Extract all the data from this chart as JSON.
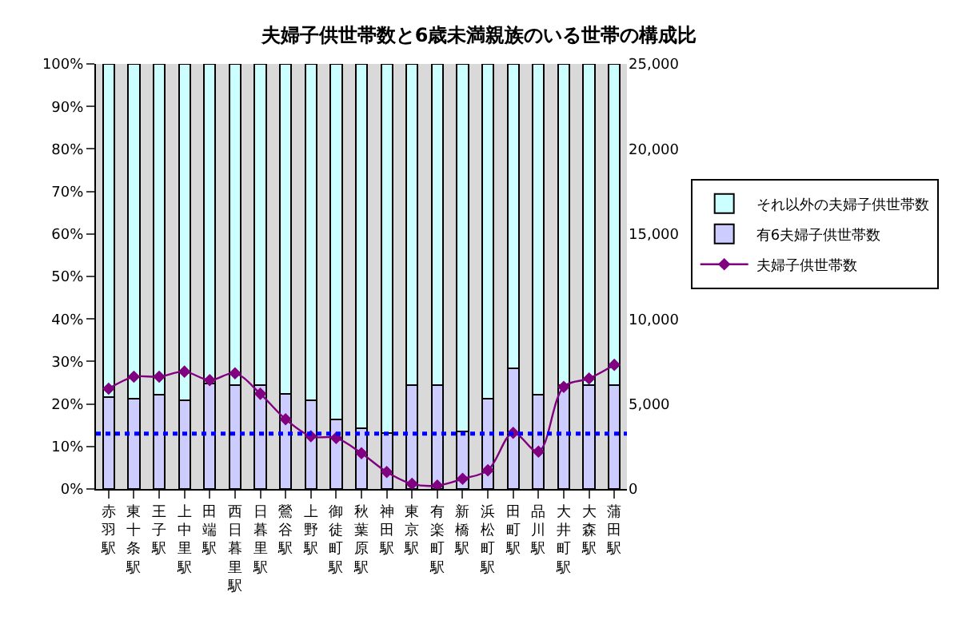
{
  "chart_data": {
    "type": "bar",
    "stacked": true,
    "title": "夫婦子供世帯数と6歳未満親族のいる世帯の構成比",
    "categories": [
      "赤羽駅",
      "東十条駅",
      "王子駅",
      "上中里駅",
      "田端駅",
      "西日暮里駅",
      "日暮里駅",
      "鶯谷駅",
      "上野駅",
      "御徒町駅",
      "秋葉原駅",
      "神田駅",
      "東京駅",
      "有楽町駅",
      "新橋駅",
      "浜松町駅",
      "田町駅",
      "品川駅",
      "大井町駅",
      "大森駅",
      "蒲田駅"
    ],
    "series": [
      {
        "name": "有6夫婦子供世帯数",
        "color": "#ccccff",
        "values": [
          21.6,
          21.2,
          22.1,
          20.8,
          24.8,
          24.4,
          24.4,
          22.4,
          20.8,
          16.4,
          14.2,
          13.2,
          24.4,
          24.4,
          13.6,
          21.2,
          28.3,
          22.1,
          24.4,
          24.4,
          24.4
        ]
      },
      {
        "name": "それ以外の夫婦子供世帯数",
        "color": "#ccffff",
        "values": [
          78.4,
          78.8,
          77.9,
          79.2,
          75.2,
          75.6,
          75.6,
          77.6,
          79.2,
          83.6,
          85.8,
          86.8,
          75.6,
          75.6,
          86.4,
          78.8,
          71.7,
          77.9,
          75.6,
          75.6,
          75.6
        ]
      },
      {
        "name": "夫婦子供世帯数",
        "type": "line",
        "axis": "y2",
        "color": "#800080",
        "marker": "diamond",
        "values": [
          5900,
          6600,
          6600,
          6900,
          6400,
          6800,
          5600,
          4100,
          3100,
          3000,
          2100,
          1000,
          300,
          200,
          600,
          1100,
          3300,
          2200,
          6000,
          6500,
          7300
        ]
      }
    ],
    "ylim": [
      0,
      100
    ],
    "yticks": [
      {
        "value": 0,
        "label": "0%"
      },
      {
        "value": 10,
        "label": "10%"
      },
      {
        "value": 20,
        "label": "20%"
      },
      {
        "value": 30,
        "label": "30%"
      },
      {
        "value": 40,
        "label": "40%"
      },
      {
        "value": 50,
        "label": "50%"
      },
      {
        "value": 60,
        "label": "60%"
      },
      {
        "value": 70,
        "label": "70%"
      },
      {
        "value": 80,
        "label": "80%"
      },
      {
        "value": 90,
        "label": "90%"
      },
      {
        "value": 100,
        "label": "100%"
      }
    ],
    "y2lim": [
      0,
      25000
    ],
    "y2ticks": [
      0,
      {
        "value": 5000,
        "label": "5,000"
      },
      {
        "value": 10000,
        "label": "10,000"
      },
      {
        "value": 15000,
        "label": "15,000"
      },
      {
        "value": 20000,
        "label": "20,000"
      },
      {
        "value": 25000,
        "label": "25,000"
      }
    ],
    "ref_lines": [
      {
        "axis": "y",
        "value": 13,
        "color": "#0000ff",
        "line_style": "dotted"
      }
    ],
    "legend": "right",
    "grid": false
  }
}
